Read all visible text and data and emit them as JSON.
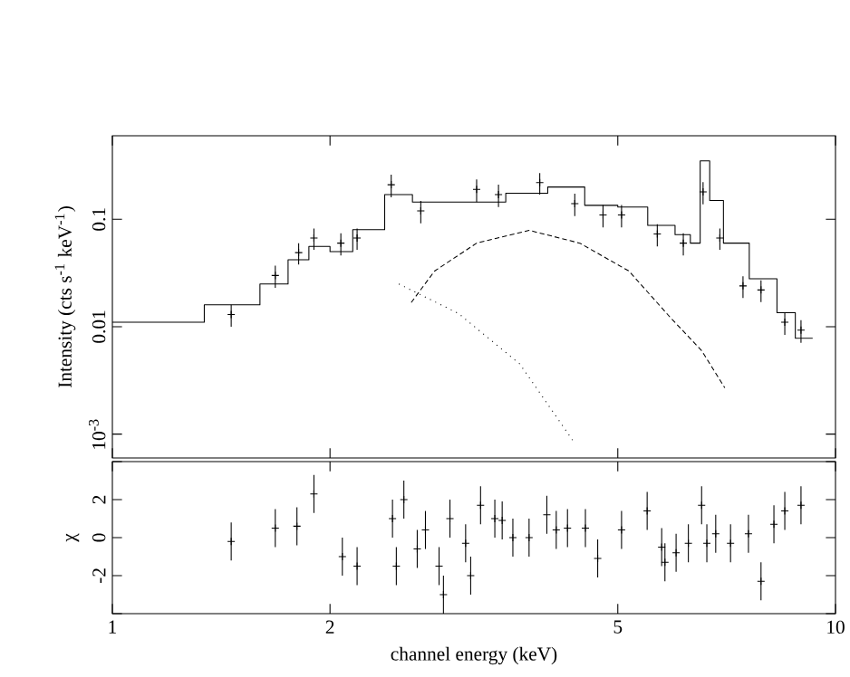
{
  "chart_data": [
    {
      "type": "scatter",
      "ylabel": "Intensity (cts s$^{-1}$ keV$^{-1}$)",
      "log": "xy",
      "xlim": [
        1,
        10
      ],
      "ylim": [
        0.0006,
        0.6
      ],
      "xticks": [
        1,
        2,
        5,
        10
      ],
      "yticks": [
        {
          "value": 0.001,
          "label": "10$^{-3}$"
        },
        0.01,
        0.1
      ],
      "tick_labels": "y",
      "series": [
        {
          "color": "#000000",
          "marker": "cross",
          "x": [
            1.46,
            1.68,
            1.81,
            1.9,
            2.07,
            2.18,
            2.43,
            2.67,
            3.19,
            3.42,
            3.9,
            4.36,
            4.77,
            5.06,
            5.67,
            6.16,
            6.56,
            6.92,
            7.45,
            7.89,
            8.51,
            8.96
          ],
          "values": [
            0.013,
            0.03,
            0.049,
            0.067,
            0.06,
            0.067,
            0.21,
            0.12,
            0.19,
            0.17,
            0.22,
            0.14,
            0.11,
            0.11,
            0.073,
            0.06,
            0.18,
            0.067,
            0.024,
            0.022,
            0.011,
            0.0093
          ],
          "errors": [
            0.003,
            0.007,
            0.011,
            0.015,
            0.014,
            0.015,
            0.05,
            0.028,
            0.045,
            0.04,
            0.05,
            0.033,
            0.026,
            0.026,
            0.017,
            0.014,
            0.042,
            0.015,
            0.0055,
            0.005,
            0.0026,
            0.0022
          ]
        },
        {
          "type": "step",
          "color": "#000000",
          "line_style": "solid",
          "x": [
            1.0,
            1.34,
            1.6,
            1.75,
            1.87,
            2.0,
            2.15,
            2.38,
            2.6,
            3.0,
            3.5,
            4.0,
            4.5,
            5.0,
            5.5,
            6.0,
            6.3,
            6.5,
            6.7,
            7.0,
            7.6,
            8.3,
            8.8,
            9.3
          ],
          "values": [
            0.011,
            0.016,
            0.025,
            0.042,
            0.056,
            0.05,
            0.08,
            0.17,
            0.145,
            0.145,
            0.175,
            0.2,
            0.135,
            0.13,
            0.088,
            0.072,
            0.06,
            0.35,
            0.15,
            0.06,
            0.028,
            0.0135,
            0.0078,
            0.0078
          ]
        },
        {
          "type": "line",
          "color": "#000000",
          "line_style": "dashed",
          "x": [
            2.59,
            2.79,
            3.19,
            3.77,
            4.43,
            5.18,
            5.91,
            6.53,
            7.03
          ],
          "values": [
            0.0168,
            0.033,
            0.06,
            0.079,
            0.06,
            0.033,
            0.0122,
            0.006,
            0.0027
          ]
        },
        {
          "type": "line",
          "color": "#000000",
          "line_style": "dotted",
          "x": [
            2.49,
            3.01,
            3.66,
            4.36
          ],
          "values": [
            0.025,
            0.0133,
            0.0045,
            0.00082
          ]
        }
      ]
    },
    {
      "type": "scatter",
      "xlabel": "channel energy (keV)",
      "ylabel": "χ",
      "log": "x",
      "xlim": [
        1,
        10
      ],
      "ylim": [
        -4,
        4
      ],
      "xticks": [
        1,
        2,
        5,
        10
      ],
      "yticks": [
        {
          "value": -4,
          "label": null
        },
        -2,
        0,
        2,
        {
          "value": 4,
          "label": null
        }
      ],
      "marker": "cross",
      "series": [
        {
          "color": "#000000",
          "x": [
            1.46,
            1.68,
            1.8,
            1.9,
            2.08,
            2.18,
            2.44,
            2.47,
            2.53,
            2.64,
            2.71,
            2.83,
            2.87,
            2.93,
            3.08,
            3.13,
            3.23,
            3.38,
            3.46,
            3.58,
            3.77,
            3.99,
            4.11,
            4.26,
            4.51,
            4.69,
            5.06,
            5.49,
            5.75,
            5.81,
            6.02,
            6.26,
            6.53,
            6.64,
            6.83,
            7.16,
            7.58,
            7.89,
            8.22,
            8.51,
            8.96
          ],
          "values": [
            -0.2,
            0.5,
            0.6,
            2.3,
            -1.0,
            -1.5,
            1.0,
            -1.5,
            2.0,
            -0.6,
            0.4,
            -1.5,
            -3.0,
            1.0,
            -0.3,
            -2.0,
            1.7,
            1.0,
            0.9,
            0,
            0,
            1.2,
            0.4,
            0.5,
            0.5,
            -1.1,
            0.4,
            1.4,
            -0.5,
            -1.3,
            -0.8,
            -0.3,
            1.7,
            -0.3,
            0.2,
            -0.3,
            0.2,
            -2.3,
            0.7,
            1.4,
            1.7
          ],
          "errors": [
            1,
            1,
            1,
            1,
            1,
            1,
            1,
            1,
            1,
            1,
            1,
            1,
            1,
            1,
            1,
            1,
            1,
            1,
            1,
            1,
            1,
            1,
            1,
            1,
            1,
            1,
            1,
            1,
            1,
            1,
            1,
            1,
            1,
            1,
            1,
            1,
            1,
            1,
            1,
            1,
            1
          ]
        }
      ]
    }
  ]
}
